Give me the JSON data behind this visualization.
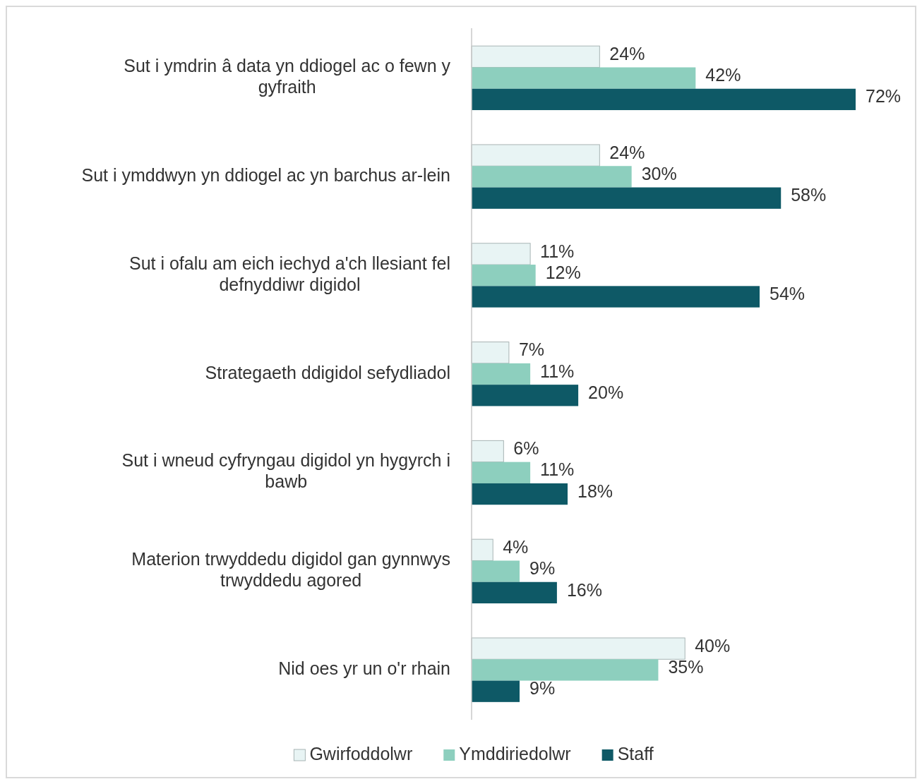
{
  "chart_data": {
    "type": "bar",
    "orientation": "horizontal",
    "legend": "bottom",
    "categories": [
      "Sut i ymdrin â data yn ddiogel ac o fewn y gyfraith",
      "Sut i ymddwyn yn ddiogel ac yn barchus ar-lein",
      "Sut i ofalu am eich iechyd a'ch llesiant fel defnyddiwr digidol",
      "Strategaeth ddigidol sefydliadol",
      "Sut i wneud cyfryngau digidol yn hygyrch i bawb",
      "Materion trwyddedu digidol gan gynnwys trwyddedu agored",
      "Nid oes yr un o'r rhain"
    ],
    "series": [
      {
        "name": "Gwirfoddolwr",
        "color": "#e8f4f4",
        "values": [
          24,
          24,
          11,
          7,
          6,
          4,
          40
        ],
        "value_labels": [
          "24%",
          "24%",
          "11%",
          "7%",
          "6%",
          "4%",
          "40%"
        ]
      },
      {
        "name": "Ymddiriedolwr",
        "color": "#8dcfbe",
        "values": [
          42,
          30,
          12,
          11,
          11,
          9,
          35
        ],
        "value_labels": [
          "42%",
          "30%",
          "12%",
          "11%",
          "11%",
          "9%",
          "35%"
        ]
      },
      {
        "name": "Staff",
        "color": "#0e5966",
        "values": [
          72,
          58,
          54,
          20,
          18,
          16,
          9
        ],
        "value_labels": [
          "72%",
          "58%",
          "54%",
          "20%",
          "18%",
          "16%",
          "9%"
        ]
      }
    ]
  }
}
